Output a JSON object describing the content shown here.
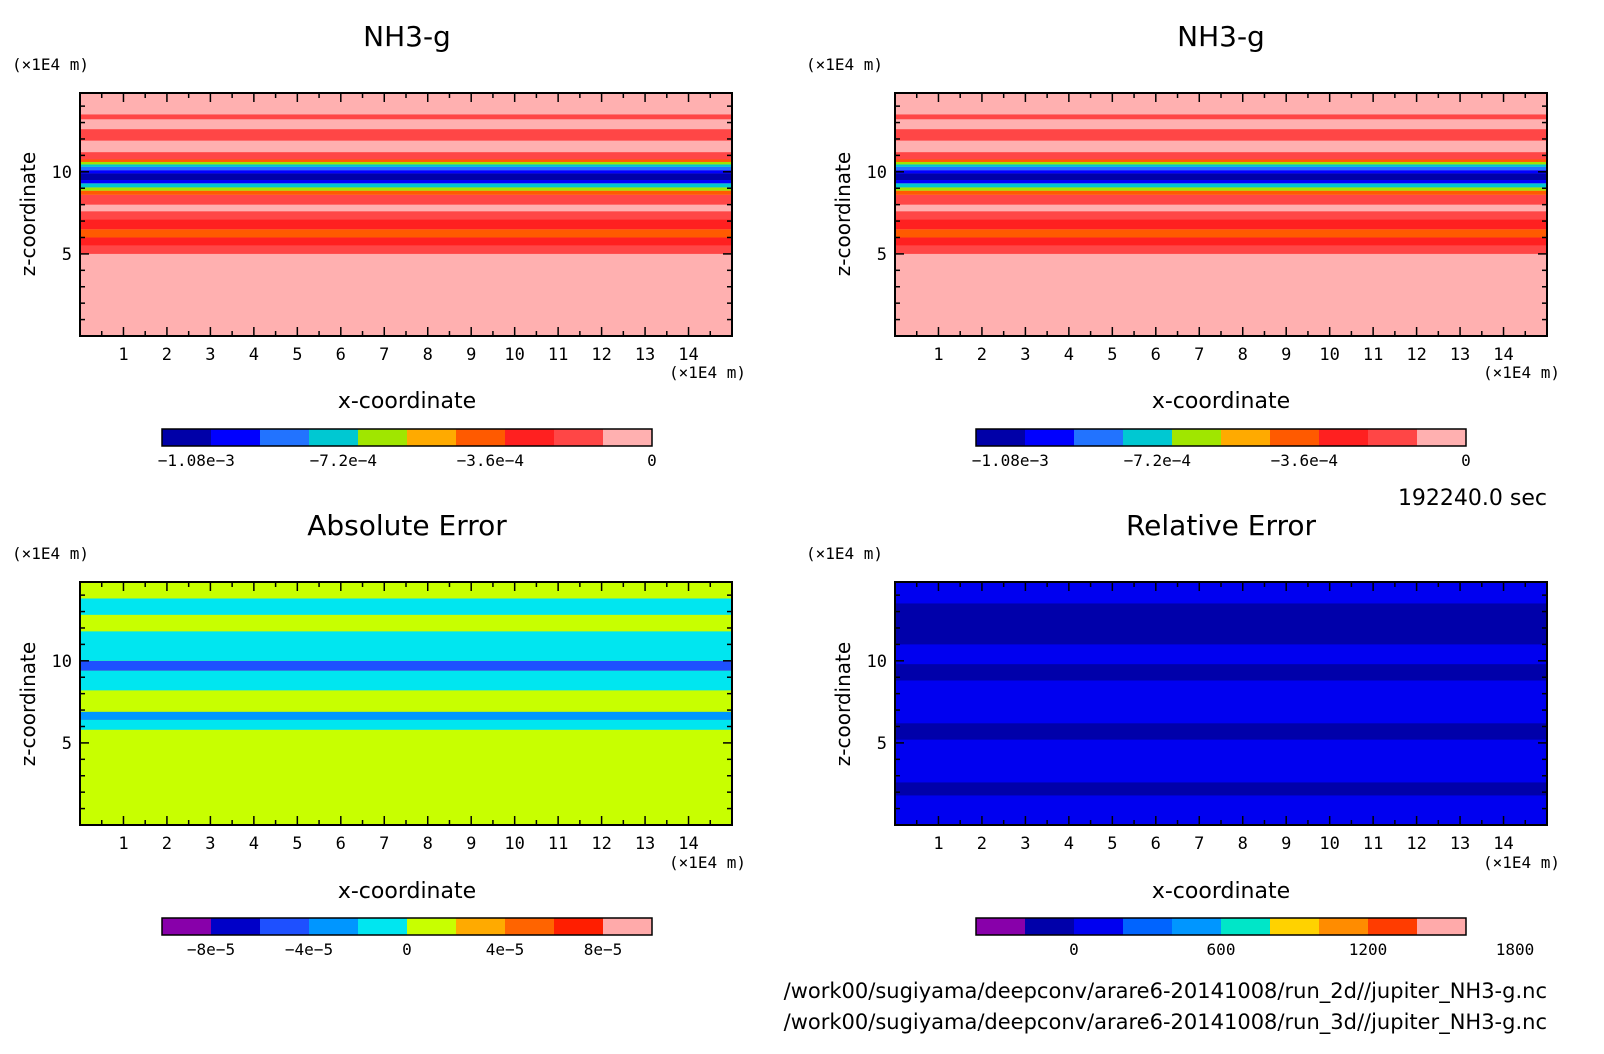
{
  "time_label": "192240.0 sec",
  "files": [
    "/work00/sugiyama/deepconv/arare6-20141008/run_2d//jupiter_NH3-g.nc",
    "/work00/sugiyama/deepconv/arare6-20141008/run_3d//jupiter_NH3-g.nc"
  ],
  "colors": {
    "nh3": [
      "#0000a8",
      "#0000ff",
      "#2273ff",
      "#00c8d2",
      "#a0e600",
      "#ffaa00",
      "#ff5a00",
      "#ff2020",
      "#ff4646",
      "#ffb0b0"
    ],
    "abs": [
      "#8800aa",
      "#0000c8",
      "#1e50ff",
      "#0096ff",
      "#00e6f0",
      "#c8ff00",
      "#ffaa00",
      "#ff6400",
      "#ff1e00",
      "#ffaaaa"
    ],
    "rel": [
      "#8800aa",
      "#0000aa",
      "#0000f0",
      "#0064ff",
      "#0096ff",
      "#00e6c8",
      "#ffd200",
      "#ff8c00",
      "#ff3c00",
      "#ffaaaa"
    ]
  },
  "chart_data": [
    {
      "type": "heatmap",
      "title": "NH3-g",
      "xlabel": "x-coordinate",
      "ylabel": "z-coordinate",
      "x_unit": "(×1E4 m)",
      "y_unit": "(×1E4 m)",
      "x_ticks": [
        1,
        2,
        3,
        4,
        5,
        6,
        7,
        8,
        9,
        10,
        11,
        12,
        13,
        14
      ],
      "y_ticks": [
        5,
        10
      ],
      "xlim": [
        0,
        15
      ],
      "ylim": [
        0,
        14.8
      ],
      "colorbar_labels": [
        "−1.08e−3",
        "−7.2e−4",
        "−3.6e−4",
        "0"
      ],
      "bands": [
        {
          "z0": 0,
          "z1": 5.0,
          "level": 9
        },
        {
          "z0": 5.0,
          "z1": 5.5,
          "level": 8
        },
        {
          "z0": 5.5,
          "z1": 6.0,
          "level": 7
        },
        {
          "z0": 6.0,
          "z1": 6.5,
          "level": 6
        },
        {
          "z0": 6.5,
          "z1": 7.1,
          "level": 7
        },
        {
          "z0": 7.1,
          "z1": 7.6,
          "level": 8
        },
        {
          "z0": 7.6,
          "z1": 8.0,
          "level": 9
        },
        {
          "z0": 8.0,
          "z1": 8.6,
          "level": 8
        },
        {
          "z0": 8.6,
          "z1": 8.85,
          "level": 6
        },
        {
          "z0": 8.85,
          "z1": 9.05,
          "level": 4
        },
        {
          "z0": 9.05,
          "z1": 9.3,
          "level": 3
        },
        {
          "z0": 9.3,
          "z1": 9.5,
          "level": 1
        },
        {
          "z0": 9.5,
          "z1": 9.9,
          "level": 0
        },
        {
          "z0": 9.9,
          "z1": 10.1,
          "level": 1
        },
        {
          "z0": 10.1,
          "z1": 10.3,
          "level": 2
        },
        {
          "z0": 10.3,
          "z1": 10.45,
          "level": 3
        },
        {
          "z0": 10.45,
          "z1": 10.6,
          "level": 4
        },
        {
          "z0": 10.6,
          "z1": 10.75,
          "level": 6
        },
        {
          "z0": 10.75,
          "z1": 11.2,
          "level": 8
        },
        {
          "z0": 11.2,
          "z1": 11.9,
          "level": 9
        },
        {
          "z0": 11.9,
          "z1": 12.6,
          "level": 8
        },
        {
          "z0": 12.6,
          "z1": 13.2,
          "level": 9
        },
        {
          "z0": 13.2,
          "z1": 13.5,
          "level": 8
        },
        {
          "z0": 13.5,
          "z1": 14.8,
          "level": 9
        }
      ]
    },
    {
      "type": "heatmap",
      "title": "NH3-g",
      "xlabel": "x-coordinate",
      "ylabel": "z-coordinate",
      "x_unit": "(×1E4 m)",
      "y_unit": "(×1E4 m)",
      "x_ticks": [
        1,
        2,
        3,
        4,
        5,
        6,
        7,
        8,
        9,
        10,
        11,
        12,
        13,
        14
      ],
      "y_ticks": [
        5,
        10
      ],
      "xlim": [
        0,
        15
      ],
      "ylim": [
        0,
        14.8
      ],
      "colorbar_labels": [
        "−1.08e−3",
        "−7.2e−4",
        "−3.6e−4",
        "0"
      ],
      "bands": [
        {
          "z0": 0,
          "z1": 5.0,
          "level": 9
        },
        {
          "z0": 5.0,
          "z1": 5.5,
          "level": 8
        },
        {
          "z0": 5.5,
          "z1": 6.0,
          "level": 7
        },
        {
          "z0": 6.0,
          "z1": 6.5,
          "level": 6
        },
        {
          "z0": 6.5,
          "z1": 7.1,
          "level": 7
        },
        {
          "z0": 7.1,
          "z1": 7.6,
          "level": 8
        },
        {
          "z0": 7.6,
          "z1": 8.0,
          "level": 9
        },
        {
          "z0": 8.0,
          "z1": 8.6,
          "level": 8
        },
        {
          "z0": 8.6,
          "z1": 8.85,
          "level": 6
        },
        {
          "z0": 8.85,
          "z1": 9.05,
          "level": 4
        },
        {
          "z0": 9.05,
          "z1": 9.3,
          "level": 3
        },
        {
          "z0": 9.3,
          "z1": 9.5,
          "level": 1
        },
        {
          "z0": 9.5,
          "z1": 9.9,
          "level": 0
        },
        {
          "z0": 9.9,
          "z1": 10.1,
          "level": 1
        },
        {
          "z0": 10.1,
          "z1": 10.3,
          "level": 2
        },
        {
          "z0": 10.3,
          "z1": 10.45,
          "level": 3
        },
        {
          "z0": 10.45,
          "z1": 10.6,
          "level": 4
        },
        {
          "z0": 10.6,
          "z1": 10.75,
          "level": 6
        },
        {
          "z0": 10.75,
          "z1": 11.2,
          "level": 8
        },
        {
          "z0": 11.2,
          "z1": 11.9,
          "level": 9
        },
        {
          "z0": 11.9,
          "z1": 12.6,
          "level": 8
        },
        {
          "z0": 12.6,
          "z1": 13.2,
          "level": 9
        },
        {
          "z0": 13.2,
          "z1": 13.5,
          "level": 8
        },
        {
          "z0": 13.5,
          "z1": 14.8,
          "level": 9
        }
      ]
    },
    {
      "type": "heatmap",
      "title": "Absolute Error",
      "xlabel": "x-coordinate",
      "ylabel": "z-coordinate",
      "x_unit": "(×1E4 m)",
      "y_unit": "(×1E4 m)",
      "x_ticks": [
        1,
        2,
        3,
        4,
        5,
        6,
        7,
        8,
        9,
        10,
        11,
        12,
        13,
        14
      ],
      "y_ticks": [
        5,
        10
      ],
      "xlim": [
        0,
        15
      ],
      "ylim": [
        0,
        14.8
      ],
      "colorbar_labels": [
        "−8e−5",
        "−4e−5",
        "0",
        "4e−5",
        "8e−5"
      ],
      "bands": [
        {
          "z0": 0,
          "z1": 5.8,
          "level": 5
        },
        {
          "z0": 5.8,
          "z1": 6.4,
          "level": 4
        },
        {
          "z0": 6.4,
          "z1": 6.9,
          "level": 3
        },
        {
          "z0": 6.9,
          "z1": 8.2,
          "level": 5
        },
        {
          "z0": 8.2,
          "z1": 9.4,
          "level": 4
        },
        {
          "z0": 9.4,
          "z1": 10.0,
          "level": 2
        },
        {
          "z0": 10.0,
          "z1": 11.8,
          "level": 4
        },
        {
          "z0": 11.8,
          "z1": 12.8,
          "level": 5
        },
        {
          "z0": 12.8,
          "z1": 13.8,
          "level": 4
        },
        {
          "z0": 13.8,
          "z1": 14.8,
          "level": 5
        }
      ]
    },
    {
      "type": "heatmap",
      "title": "Relative Error",
      "xlabel": "x-coordinate",
      "ylabel": "z-coordinate",
      "x_unit": "(×1E4 m)",
      "y_unit": "(×1E4 m)",
      "x_ticks": [
        1,
        2,
        3,
        4,
        5,
        6,
        7,
        8,
        9,
        10,
        11,
        12,
        13,
        14
      ],
      "y_ticks": [
        5,
        10
      ],
      "xlim": [
        0,
        15
      ],
      "ylim": [
        0,
        14.8
      ],
      "colorbar_labels": [
        "0",
        "600",
        "1200",
        "1800"
      ],
      "bands": [
        {
          "z0": 0,
          "z1": 1.8,
          "level": 2
        },
        {
          "z0": 1.8,
          "z1": 2.6,
          "level": 1
        },
        {
          "z0": 2.6,
          "z1": 5.2,
          "level": 2
        },
        {
          "z0": 5.2,
          "z1": 6.2,
          "level": 1
        },
        {
          "z0": 6.2,
          "z1": 8.8,
          "level": 2
        },
        {
          "z0": 8.8,
          "z1": 9.8,
          "level": 1
        },
        {
          "z0": 9.8,
          "z1": 11.0,
          "level": 2
        },
        {
          "z0": 11.0,
          "z1": 13.5,
          "level": 1
        },
        {
          "z0": 13.5,
          "z1": 14.8,
          "level": 2
        }
      ]
    }
  ]
}
